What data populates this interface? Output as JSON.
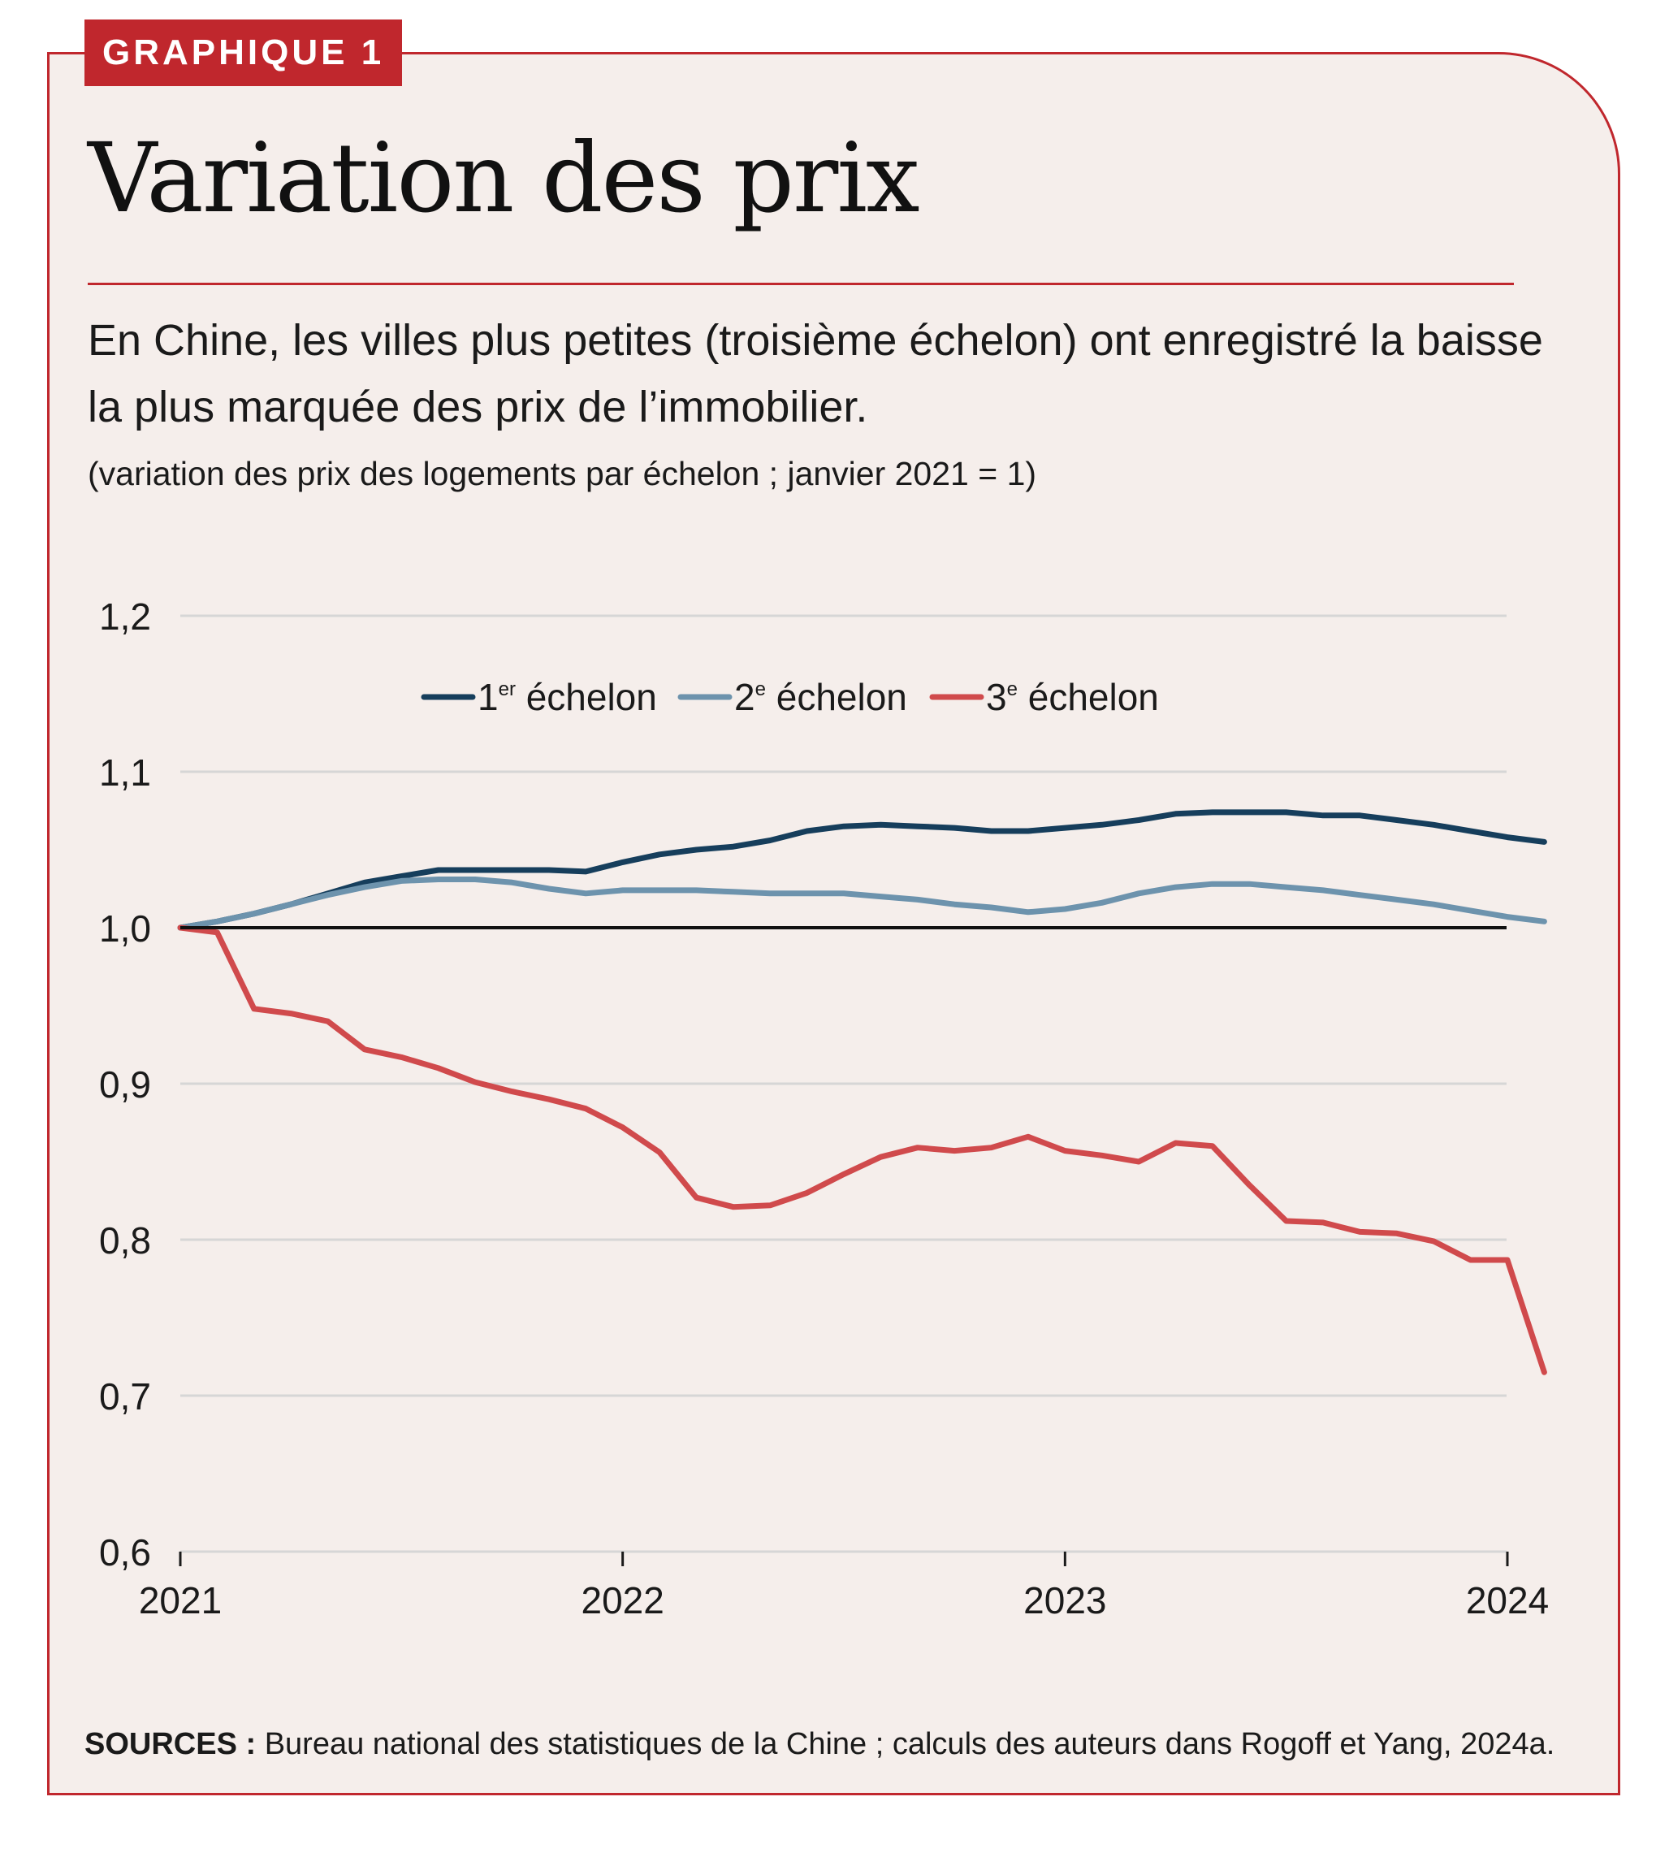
{
  "header": {
    "tag": "GRAPHIQUE 1",
    "title": "Variation des prix",
    "subtitle": "En Chine, les villes plus petites (troisième échelon) ont enregistré la baisse la plus marquée des prix de l’immobilier.",
    "note": "(variation des prix des logements par échelon ; janvier 2021 = 1)"
  },
  "footer": {
    "sources_label": "SOURCES :",
    "sources_text": " Bureau national des statistiques de la Chine ; calculs des auteurs dans Rogoff et Yang, 2024a."
  },
  "colors": {
    "accent": "#c0272d",
    "background": "#f5eeeb",
    "tier1": "#163e5c",
    "tier2": "#6d93ad",
    "tier3": "#d04a4c",
    "reference_line": "#111111",
    "grid": "#d6d6d6"
  },
  "chart_data": {
    "type": "line",
    "x_start": "2021-01",
    "frequency": "monthly",
    "x_ticks": [
      "2021",
      "2022",
      "2023",
      "2024"
    ],
    "ylim": [
      0.6,
      1.2
    ],
    "y_ticks": [
      "0,6",
      "0,7",
      "0,8",
      "0,9",
      "1,0",
      "1,1",
      "1,2"
    ],
    "y_tick_values": [
      0.6,
      0.7,
      0.8,
      0.9,
      1.0,
      1.1,
      1.2
    ],
    "reference_value": 1.0,
    "grid": true,
    "legend_position": "top-center",
    "series": [
      {
        "name": "1er échelon",
        "name_base": "1",
        "name_sup": "er",
        "name_rest": " échelon",
        "color_key": "tier1",
        "values": [
          1.0,
          1.004,
          1.009,
          1.015,
          1.022,
          1.029,
          1.033,
          1.037,
          1.037,
          1.037,
          1.037,
          1.036,
          1.042,
          1.047,
          1.05,
          1.052,
          1.056,
          1.062,
          1.065,
          1.066,
          1.065,
          1.064,
          1.062,
          1.062,
          1.064,
          1.066,
          1.069,
          1.073,
          1.074,
          1.074,
          1.074,
          1.072,
          1.072,
          1.069,
          1.066,
          1.062,
          1.058,
          1.055
        ]
      },
      {
        "name": "2e échelon",
        "name_base": "2",
        "name_sup": "e",
        "name_rest": " échelon",
        "color_key": "tier2",
        "values": [
          1.0,
          1.004,
          1.009,
          1.015,
          1.021,
          1.026,
          1.03,
          1.031,
          1.031,
          1.029,
          1.025,
          1.022,
          1.024,
          1.024,
          1.024,
          1.023,
          1.022,
          1.022,
          1.022,
          1.02,
          1.018,
          1.015,
          1.013,
          1.01,
          1.012,
          1.016,
          1.022,
          1.026,
          1.028,
          1.028,
          1.026,
          1.024,
          1.021,
          1.018,
          1.015,
          1.011,
          1.007,
          1.004
        ]
      },
      {
        "name": "3e échelon",
        "name_base": "3",
        "name_sup": "e",
        "name_rest": " échelon",
        "color_key": "tier3",
        "values": [
          1.0,
          0.997,
          0.948,
          0.945,
          0.94,
          0.922,
          0.917,
          0.91,
          0.901,
          0.895,
          0.89,
          0.884,
          0.872,
          0.856,
          0.827,
          0.821,
          0.822,
          0.83,
          0.842,
          0.853,
          0.859,
          0.857,
          0.859,
          0.866,
          0.857,
          0.854,
          0.85,
          0.862,
          0.86,
          0.835,
          0.812,
          0.811,
          0.805,
          0.804,
          0.799,
          0.787,
          0.787,
          0.715
        ]
      }
    ]
  }
}
